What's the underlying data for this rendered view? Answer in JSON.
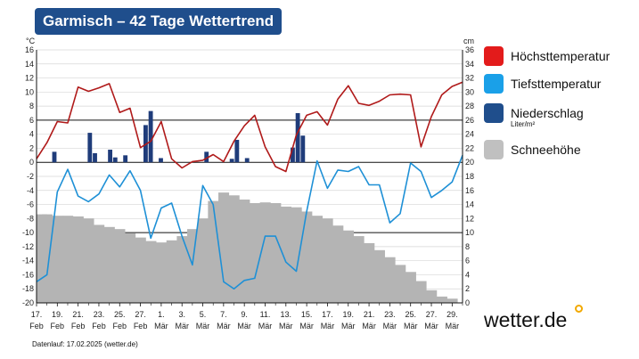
{
  "title": "Garmisch – 42 Tage Wettertrend",
  "footer": "Datenlauf: 17.02.2025 (wetter.de)",
  "logo": "wetter.de",
  "chart_data": {
    "type": "combo",
    "left_unit": "°C",
    "right_unit": "cm",
    "ylim_left": [
      -20,
      16
    ],
    "ylim_right": [
      0,
      36
    ],
    "left_ticks": [
      16,
      14,
      12,
      10,
      8,
      6,
      4,
      2,
      0,
      -2,
      -4,
      -6,
      -8,
      -10,
      -12,
      -14,
      -16,
      -18,
      -20
    ],
    "right_ticks": [
      36,
      34,
      32,
      30,
      28,
      26,
      24,
      22,
      20,
      18,
      16,
      14,
      12,
      10,
      8,
      6,
      4,
      2,
      0
    ],
    "bold_gridlines_left": [
      6,
      0,
      -10
    ],
    "x_labels": [
      {
        "day": "17.",
        "month": "Feb",
        "index": 0
      },
      {
        "day": "19.",
        "month": "Feb",
        "index": 2
      },
      {
        "day": "21.",
        "month": "Feb",
        "index": 4
      },
      {
        "day": "23.",
        "month": "Feb",
        "index": 6
      },
      {
        "day": "25.",
        "month": "Feb",
        "index": 8
      },
      {
        "day": "27.",
        "month": "Feb",
        "index": 10
      },
      {
        "day": "1.",
        "month": "Mär",
        "index": 12
      },
      {
        "day": "3.",
        "month": "Mär",
        "index": 14
      },
      {
        "day": "5.",
        "month": "Mär",
        "index": 16
      },
      {
        "day": "7.",
        "month": "Mär",
        "index": 18
      },
      {
        "day": "9.",
        "month": "Mär",
        "index": 20
      },
      {
        "day": "11.",
        "month": "Mär",
        "index": 22
      },
      {
        "day": "13.",
        "month": "Mär",
        "index": 24
      },
      {
        "day": "15.",
        "month": "Mär",
        "index": 26
      },
      {
        "day": "17.",
        "month": "Mär",
        "index": 28
      },
      {
        "day": "19.",
        "month": "Mär",
        "index": 30
      },
      {
        "day": "21.",
        "month": "Mär",
        "index": 32
      },
      {
        "day": "23.",
        "month": "Mär",
        "index": 34
      },
      {
        "day": "25.",
        "month": "Mär",
        "index": 36
      },
      {
        "day": "27.",
        "month": "Mär",
        "index": 38
      },
      {
        "day": "29.",
        "month": "Mär",
        "index": 40
      }
    ],
    "series": [
      {
        "name": "Höchsttemperatur",
        "type": "line",
        "axis": "left",
        "color": "#b01a1a",
        "values": [
          0.5,
          2.8,
          5.8,
          5.6,
          10.7,
          10.1,
          10.6,
          11.2,
          7.1,
          7.7,
          2.1,
          3.0,
          5.8,
          0.5,
          -0.8,
          0.1,
          0.3,
          1.1,
          0.1,
          3.0,
          5.2,
          6.7,
          2.2,
          -0.6,
          -1.3,
          3.9,
          6.7,
          7.2,
          5.3,
          9.0,
          10.9,
          8.4,
          8.1,
          8.7,
          9.6,
          9.7,
          9.6,
          2.2,
          6.5,
          9.6,
          10.8,
          11.4
        ]
      },
      {
        "name": "Tiefsttemperatur",
        "type": "line",
        "axis": "left",
        "color": "#1e90d6",
        "values": [
          -17.0,
          -16.0,
          -4.2,
          -1.0,
          -4.8,
          -5.6,
          -4.5,
          -1.8,
          -3.5,
          -1.2,
          -4.0,
          -10.8,
          -6.5,
          -5.8,
          -10.5,
          -14.6,
          -3.3,
          -6.0,
          -17.0,
          -18.0,
          -16.8,
          -16.5,
          -10.5,
          -10.5,
          -14.2,
          -15.5,
          -7.0,
          0.2,
          -3.7,
          -1.1,
          -1.3,
          -0.6,
          -3.2,
          -3.2,
          -8.6,
          -7.3,
          -0.1,
          -1.3,
          -5.0,
          -4.0,
          -2.8,
          1.0
        ]
      },
      {
        "name": "Niederschlag",
        "type": "bar",
        "axis": "left",
        "color": "#1f3c7a",
        "values": [
          0,
          0,
          0,
          1.5,
          0,
          0,
          0,
          0,
          0,
          0,
          4.2,
          1.3,
          0,
          0,
          1.8,
          0.7,
          0,
          1.0,
          0,
          0,
          0,
          5.3,
          7.3,
          0,
          0.6,
          0,
          0,
          0,
          0,
          0,
          0,
          0,
          0,
          1.5,
          0,
          0,
          0,
          0,
          0.5,
          3.2,
          0,
          0.6,
          0,
          0,
          0,
          0,
          0,
          0,
          0,
          0,
          2.1,
          7.0,
          3.8,
          0,
          0,
          0,
          0,
          0,
          0,
          0,
          0,
          0,
          0,
          0,
          0,
          0,
          0,
          0,
          0,
          0,
          0,
          0,
          0,
          0,
          0,
          0,
          0,
          0,
          0,
          0,
          0,
          0,
          0,
          0
        ]
      },
      {
        "name": "Schneehöhe",
        "type": "area",
        "axis": "right",
        "color": "#b4b4b4",
        "values": [
          12.6,
          12.6,
          12.4,
          12.4,
          12.3,
          12.0,
          11.1,
          10.8,
          10.5,
          9.9,
          9.3,
          8.8,
          8.6,
          8.9,
          9.5,
          10.5,
          12.0,
          14.5,
          15.7,
          15.3,
          14.7,
          14.2,
          14.3,
          14.2,
          13.7,
          13.6,
          13.0,
          12.4,
          12.0,
          11.0,
          10.3,
          9.5,
          8.5,
          7.5,
          6.5,
          5.4,
          4.4,
          3.1,
          1.8,
          0.9,
          0.6,
          0
        ]
      }
    ],
    "legend": [
      {
        "label": "Höchsttemperatur",
        "color": "#e31b1b"
      },
      {
        "label": "Tiefsttemperatur",
        "color": "#1aa0e8"
      },
      {
        "label": "Niederschlag",
        "color": "#1f4e8c",
        "unit": "Liter/m²"
      },
      {
        "label": "Schneehöhe",
        "color": "#c0c0c0"
      }
    ]
  }
}
